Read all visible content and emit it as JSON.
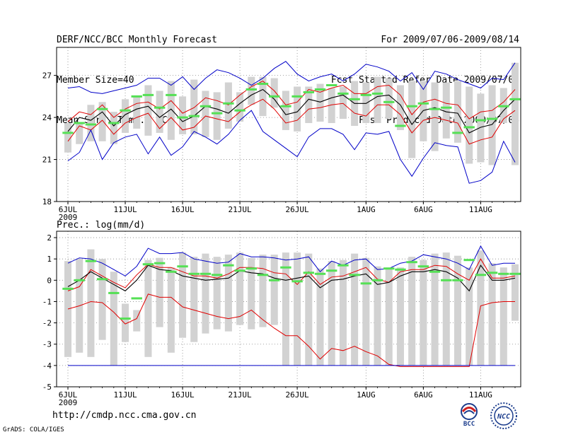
{
  "header": {
    "title": "DERF/NCC/BCC Monthly Forecast",
    "member_size": "Member Size=40",
    "variable": "Mean Surf. Temp.: °C",
    "period": "For 2009/07/06-2009/08/14",
    "started": "Fcst Started Refer Date 2009/07/05",
    "produced": "Fcst Produced Date 2009/07/06"
  },
  "footer": {
    "url": "http://cmdp.ncc.cma.gov.cn",
    "grads": "GrADS: COLA/IGES",
    "logo_bcc": "BCC",
    "logo_ncc": "NCC"
  },
  "colors": {
    "envelope": "#0000c8",
    "spread": "#e00000",
    "ensemble_mean": "#000000",
    "member_box": "#d2d2d2",
    "median_mark": "#55e055"
  },
  "chart_data": [
    {
      "type": "line",
      "name": "temperature",
      "title": "Mean Surf. Temp.: °C",
      "ylabel": "°C",
      "ylim": [
        18,
        29
      ],
      "yticks": [
        18,
        21,
        24,
        27
      ],
      "xticks": [
        {
          "day": 0,
          "label": "6JUL",
          "sub": "2009"
        },
        {
          "day": 5,
          "label": "11JUL"
        },
        {
          "day": 10,
          "label": "16JUL"
        },
        {
          "day": 15,
          "label": "21JUL"
        },
        {
          "day": 20,
          "label": "26JUL"
        },
        {
          "day": 26,
          "label": "1AUG"
        },
        {
          "day": 31,
          "label": "6AUG"
        },
        {
          "day": 36,
          "label": "11AUG"
        }
      ],
      "days": 40,
      "series": [
        {
          "name": "max",
          "color": "#0000c8",
          "values": [
            26.1,
            26.2,
            25.8,
            25.7,
            25.9,
            26.1,
            26.3,
            26.8,
            26.8,
            26.3,
            26.9,
            26.0,
            26.8,
            27.4,
            27.2,
            26.8,
            26.3,
            26.8,
            27.5,
            28.0,
            27.1,
            26.6,
            26.9,
            27.1,
            26.6,
            27.1,
            27.8,
            27.6,
            27.3,
            26.6,
            27.2,
            26.0,
            27.3,
            27.1,
            26.7,
            26.4,
            26.1,
            26.8,
            26.7,
            27.9
          ]
        },
        {
          "name": "upper",
          "color": "#e00000",
          "values": [
            23.7,
            24.4,
            24.2,
            24.9,
            24.0,
            24.6,
            25.0,
            25.1,
            24.6,
            25.2,
            24.3,
            24.7,
            25.4,
            25.2,
            24.9,
            25.6,
            26.2,
            26.6,
            25.9,
            24.9,
            25.1,
            26.0,
            25.8,
            26.1,
            26.3,
            25.7,
            25.7,
            26.2,
            26.3,
            25.6,
            24.2,
            25.1,
            25.3,
            25.0,
            24.9,
            23.9,
            24.4,
            24.5,
            25.1,
            26.0
          ]
        },
        {
          "name": "mean",
          "color": "#000000",
          "values": [
            23.0,
            24.0,
            23.8,
            24.4,
            23.4,
            24.2,
            24.6,
            24.8,
            24.0,
            24.6,
            23.7,
            24.1,
            24.8,
            24.6,
            24.3,
            25.0,
            25.6,
            26.0,
            25.3,
            24.2,
            24.4,
            25.3,
            25.1,
            25.4,
            25.6,
            25.0,
            25.0,
            25.5,
            25.6,
            24.9,
            23.5,
            24.5,
            24.7,
            24.4,
            24.3,
            22.9,
            23.3,
            23.5,
            24.5,
            25.3
          ]
        },
        {
          "name": "lower",
          "color": "#e00000",
          "values": [
            22.3,
            23.4,
            23.1,
            23.8,
            22.8,
            23.6,
            24.0,
            24.3,
            23.2,
            24.0,
            23.1,
            23.3,
            24.1,
            23.9,
            23.7,
            24.4,
            24.9,
            25.3,
            24.6,
            23.6,
            23.8,
            24.6,
            24.7,
            24.9,
            25.0,
            24.3,
            24.1,
            24.9,
            24.9,
            24.2,
            22.9,
            23.8,
            24.0,
            23.8,
            23.6,
            22.1,
            22.4,
            22.6,
            23.9,
            24.5
          ]
        },
        {
          "name": "min",
          "color": "#0000c8",
          "values": [
            20.9,
            21.5,
            23.1,
            21.0,
            22.2,
            22.6,
            22.8,
            21.4,
            22.6,
            21.3,
            21.9,
            23.0,
            22.6,
            22.1,
            22.8,
            23.8,
            24.5,
            23.0,
            22.4,
            21.8,
            21.2,
            22.6,
            23.2,
            23.2,
            22.8,
            21.7,
            22.9,
            22.8,
            23.0,
            21.0,
            19.8,
            21.1,
            22.2,
            22.0,
            21.9,
            19.3,
            19.5,
            20.1,
            22.3,
            20.8
          ]
        }
      ],
      "boxes": {
        "low": [
          21.5,
          22.1,
          22.3,
          22.3,
          22.1,
          22.9,
          23.2,
          22.7,
          22.9,
          22.4,
          22.8,
          22.8,
          22.6,
          22.4,
          23.2,
          23.7,
          24.9,
          24.1,
          24.7,
          23.1,
          23.0,
          23.6,
          23.7,
          23.6,
          23.9,
          23.4,
          23.6,
          23.6,
          23.9,
          23.1,
          21.1,
          22.3,
          21.6,
          22.5,
          22.2,
          20.7,
          20.8,
          20.6,
          23.6,
          20.6
        ],
        "high": [
          23.6,
          23.6,
          24.9,
          25.1,
          24.4,
          25.3,
          25.5,
          26.3,
          25.9,
          26.6,
          25.5,
          26.7,
          25.9,
          25.8,
          26.5,
          25.8,
          26.9,
          26.9,
          26.8,
          25.9,
          26.2,
          26.2,
          26.4,
          26.1,
          26.2,
          26.6,
          26.5,
          26.9,
          26.8,
          26.3,
          26.6,
          26.6,
          26.5,
          26.5,
          26.6,
          26.2,
          25.7,
          26.3,
          26.1,
          27.9
        ],
        "median": [
          22.9,
          23.6,
          23.5,
          24.6,
          23.6,
          24.5,
          25.5,
          25.6,
          24.7,
          25.6,
          24.0,
          24.1,
          24.8,
          24.3,
          25.0,
          24.5,
          26.0,
          26.4,
          25.5,
          24.8,
          25.5,
          25.8,
          26.0,
          26.3,
          25.7,
          25.3,
          25.6,
          25.7,
          25.1,
          23.4,
          24.8,
          25.0,
          24.6,
          24.7,
          22.9,
          23.3,
          23.8,
          23.9,
          24.8,
          25.3
        ]
      }
    },
    {
      "type": "line",
      "name": "precipitation",
      "title": "Prec.: log(mm/d)",
      "ylabel": "log(mm/d)",
      "ylim": [
        -5,
        2.3
      ],
      "yticks": [
        -5,
        -4,
        -3,
        -2,
        -1,
        0,
        1,
        2
      ],
      "xticks": [
        {
          "day": 0,
          "label": "6JUL",
          "sub": "2009"
        },
        {
          "day": 5,
          "label": "11JUL"
        },
        {
          "day": 10,
          "label": "16JUL"
        },
        {
          "day": 15,
          "label": "21JUL"
        },
        {
          "day": 20,
          "label": "26JUL"
        },
        {
          "day": 26,
          "label": "1AUG"
        },
        {
          "day": 31,
          "label": "6AUG"
        },
        {
          "day": 36,
          "label": "11AUG"
        }
      ],
      "days": 40,
      "series": [
        {
          "name": "max",
          "color": "#0000c8",
          "values": [
            0.8,
            1.05,
            1.0,
            0.8,
            0.5,
            0.2,
            0.65,
            1.5,
            1.25,
            1.25,
            1.3,
            1.0,
            0.9,
            0.8,
            0.85,
            1.25,
            1.1,
            1.1,
            1.05,
            0.95,
            1.0,
            1.1,
            0.4,
            0.9,
            0.7,
            0.95,
            1.0,
            0.5,
            0.55,
            0.8,
            0.9,
            1.2,
            1.1,
            1.0,
            0.8,
            0.5,
            1.6,
            0.7,
            0.8,
            0.8
          ]
        },
        {
          "name": "upper",
          "color": "#e00000",
          "values": [
            -0.5,
            -0.3,
            0.5,
            0.2,
            -0.1,
            -0.35,
            0.25,
            0.75,
            0.6,
            0.6,
            0.4,
            0.2,
            0.2,
            0.1,
            0.3,
            0.6,
            0.6,
            0.55,
            0.35,
            0.3,
            -0.2,
            0.4,
            -0.2,
            0.15,
            0.2,
            0.4,
            0.6,
            0.05,
            -0.1,
            0.4,
            0.5,
            0.5,
            0.7,
            0.65,
            0.3,
            0.0,
            1.0,
            0.1,
            0.1,
            0.2
          ]
        },
        {
          "name": "mean",
          "color": "#000000",
          "values": [
            -0.3,
            0.0,
            0.4,
            0.1,
            -0.2,
            -0.5,
            0.0,
            0.7,
            0.5,
            0.45,
            0.2,
            0.1,
            0.0,
            0.05,
            0.1,
            0.45,
            0.35,
            0.3,
            0.1,
            0.0,
            0.1,
            0.2,
            -0.35,
            0.0,
            0.05,
            0.2,
            0.3,
            -0.2,
            -0.1,
            0.2,
            0.4,
            0.4,
            0.5,
            0.4,
            0.1,
            -0.5,
            0.7,
            0.0,
            0.0,
            0.1
          ]
        },
        {
          "name": "lower",
          "color": "#e00000",
          "values": [
            -1.35,
            -1.2,
            -1.0,
            -1.05,
            -1.5,
            -2.05,
            -1.8,
            -0.65,
            -0.8,
            -0.8,
            -1.25,
            -1.4,
            -1.55,
            -1.7,
            -1.8,
            -1.7,
            -1.4,
            -1.85,
            -2.25,
            -2.6,
            -2.6,
            -3.1,
            -3.7,
            -3.2,
            -3.3,
            -3.1,
            -3.35,
            -3.55,
            -3.95,
            -4.05,
            -4.05,
            -4.05,
            -4.05,
            -4.05,
            -4.05,
            -4.05,
            -1.2,
            -1.05,
            -1.0,
            -1.0
          ]
        },
        {
          "name": "min",
          "color": "#0000c8",
          "values": [
            -4.0,
            -4.0,
            -4.0,
            -4.0,
            -4.0,
            -4.0,
            -4.0,
            -4.0,
            -4.0,
            -4.0,
            -4.0,
            -4.0,
            -4.0,
            -4.0,
            -4.0,
            -4.0,
            -4.0,
            -4.0,
            -4.0,
            -4.0,
            -4.0,
            -4.0,
            -4.0,
            -4.0,
            -4.0,
            -4.0,
            -4.0,
            -4.0,
            -4.0,
            -4.0,
            -4.0,
            -4.0,
            -4.0,
            -4.0,
            -4.0,
            -4.0,
            -4.0,
            -4.0,
            -4.0,
            -4.0
          ]
        }
      ],
      "boxes": {
        "low": [
          -3.6,
          -3.4,
          -3.6,
          -2.8,
          -4.0,
          -2.9,
          -2.4,
          -3.6,
          -2.2,
          -3.4,
          -2.7,
          -2.9,
          -2.5,
          -2.3,
          -2.4,
          -2.1,
          -2.3,
          -2.2,
          -2.1,
          -4.0,
          -4.0,
          -4.0,
          -4.0,
          -4.0,
          -4.0,
          -4.0,
          -4.0,
          -4.0,
          -4.0,
          -4.0,
          -4.0,
          -4.0,
          -4.0,
          -4.0,
          -4.0,
          -4.0,
          -4.0,
          -4.0,
          -4.0,
          -1.9
        ],
        "high": [
          0.9,
          1.0,
          1.45,
          1.0,
          0.4,
          -1.1,
          -1.4,
          0.95,
          1.05,
          0.6,
          1.3,
          1.1,
          1.25,
          1.1,
          1.2,
          1.3,
          1.05,
          1.2,
          1.2,
          1.3,
          1.3,
          1.25,
          0.55,
          0.9,
          0.95,
          1.25,
          1.05,
          0.65,
          0.6,
          0.6,
          1.1,
          0.95,
          1.25,
          1.3,
          1.15,
          0.6,
          1.4,
          0.8,
          0.6,
          0.75
        ],
        "median": [
          -0.4,
          0.0,
          0.9,
          0.05,
          -0.6,
          -1.8,
          -0.85,
          0.75,
          0.8,
          0.4,
          0.65,
          0.3,
          0.3,
          0.25,
          0.7,
          0.45,
          0.55,
          0.25,
          0.0,
          0.6,
          -0.05,
          0.35,
          0.3,
          0.45,
          0.7,
          0.25,
          -0.15,
          0.0,
          0.55,
          0.5,
          0.85,
          0.65,
          0.4,
          0.0,
          0.0,
          0.95,
          0.25,
          0.35,
          0.3,
          0.3
        ]
      }
    }
  ]
}
